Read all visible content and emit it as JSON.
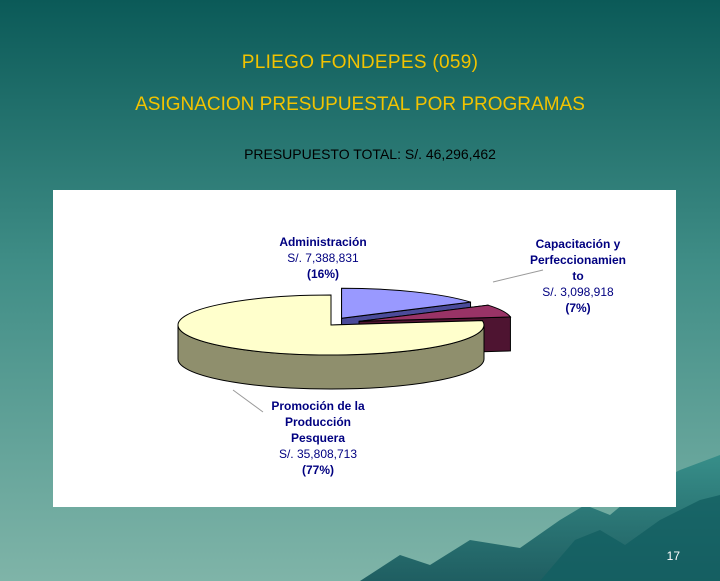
{
  "slide": {
    "title_line1": "PLIEGO FONDEPES (059)",
    "title_line2": "ASIGNACION PRESUPUESTAL POR PROGRAMAS",
    "subtitle": "PRESUPUESTO TOTAL: S/. 46,296,462",
    "page_number": "17",
    "colors": {
      "background_top": "#0b5a58",
      "title": "#f2c300"
    }
  },
  "chart_data": {
    "type": "pie",
    "style": "3d-exploded",
    "total_text": "S/. 46,296,462",
    "slices": [
      {
        "label_lines": [
          "Administración",
          "S/. 7,388,831",
          "(16%)"
        ],
        "category": "Administración",
        "value": 7388831,
        "percent": 16,
        "color": "#9999ff",
        "side_color": "#4b4b9a"
      },
      {
        "label_lines": [
          "Capacitación y",
          "Perfeccionamien",
          "to",
          "S/. 3,098,918",
          "(7%)"
        ],
        "category": "Capacitación y Perfeccionamiento",
        "value": 3098918,
        "percent": 7,
        "color": "#993366",
        "side_color": "#4e1431"
      },
      {
        "label_lines": [
          "Promoción de la",
          "Producción",
          "Pesquera",
          "S/. 35,808,713",
          "(77%)"
        ],
        "category": "Promoción de la Producción Pesquera",
        "value": 35808713,
        "percent": 77,
        "color": "#ffffcc",
        "side_color": "#8f8f6d"
      }
    ],
    "label_color": "#000080"
  }
}
